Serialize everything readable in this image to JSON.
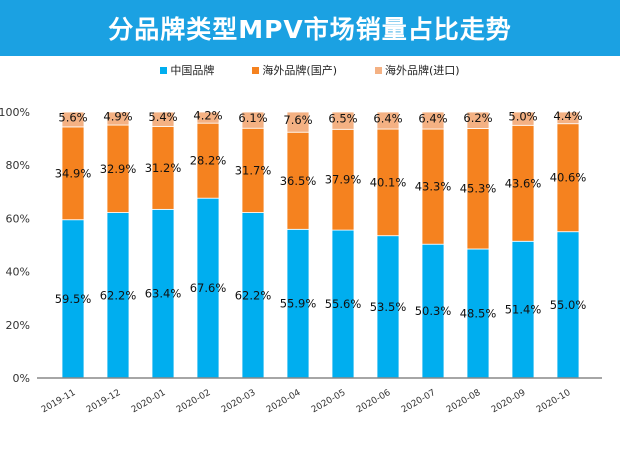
{
  "title": "分品牌类型MPV市场销量占比走势",
  "chart_data": {
    "type": "bar",
    "stacked": true,
    "title": "分品牌类型MPV市场销量占比走势",
    "categories": [
      "2019-11",
      "2019-12",
      "2020-01",
      "2020-02",
      "2020-03",
      "2020-04",
      "2020-05",
      "2020-06",
      "2020-07",
      "2020-08",
      "2020-09",
      "2020-10"
    ],
    "series": [
      {
        "name": "中国品牌",
        "color": "#00aeef",
        "values": [
          59.5,
          62.2,
          63.4,
          67.6,
          62.2,
          55.9,
          55.6,
          53.5,
          50.3,
          48.5,
          51.4,
          55.0
        ]
      },
      {
        "name": "海外品牌(国产)",
        "color": "#f5821f",
        "values": [
          34.9,
          32.9,
          31.2,
          28.2,
          31.7,
          36.5,
          37.9,
          40.1,
          43.3,
          45.3,
          43.6,
          40.6
        ]
      },
      {
        "name": "海外品牌(进口)",
        "color": "#f4b183",
        "values": [
          5.6,
          4.9,
          5.4,
          4.2,
          6.1,
          7.6,
          6.5,
          6.4,
          6.4,
          6.2,
          5.0,
          4.4
        ]
      }
    ],
    "yticks": [
      "0%",
      "20%",
      "40%",
      "60%",
      "80%",
      "100%"
    ],
    "ylim": [
      0,
      100
    ],
    "grid": false,
    "legend": "top"
  }
}
